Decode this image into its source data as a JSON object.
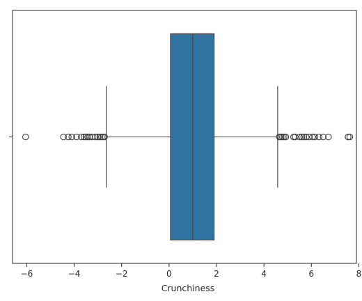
{
  "chart_data": {
    "type": "boxplot",
    "orientation": "horizontal",
    "xlabel": "Crunchiness",
    "ylabel": "",
    "xlim": [
      -6.6,
      7.9
    ],
    "xticks": [
      -6,
      -4,
      -2,
      0,
      2,
      4,
      6,
      8
    ],
    "xtick_labels": [
      "−6",
      "−4",
      "−2",
      "0",
      "2",
      "4",
      "6",
      "8"
    ],
    "ytick_labels": [
      ""
    ],
    "grid": false,
    "box": {
      "whisker_low": -2.65,
      "q1": 0.06,
      "median": 1.0,
      "q3": 1.9,
      "whisker_high": 4.58,
      "outliers": [
        -6.05,
        -4.45,
        -4.25,
        -4.1,
        -3.9,
        -3.7,
        -3.58,
        -3.5,
        -3.42,
        -3.35,
        -3.25,
        -3.12,
        -3.0,
        -2.92,
        -2.85,
        -2.78,
        -2.72,
        4.65,
        4.72,
        4.78,
        4.85,
        4.92,
        5.25,
        5.32,
        5.5,
        5.6,
        5.68,
        5.78,
        5.9,
        6.05,
        6.15,
        6.32,
        6.5,
        6.72,
        7.55,
        7.62
      ]
    },
    "colors": {
      "box_fill": "#3274a1",
      "line": "#3d3d3d",
      "axis": "#262626"
    }
  }
}
